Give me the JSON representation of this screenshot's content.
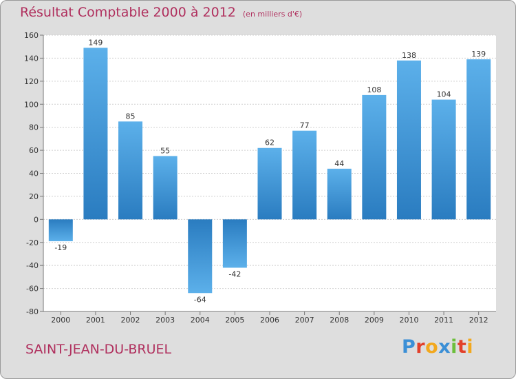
{
  "title": "Résultat Comptable 2000 à 2012",
  "unit_note": "(en milliers d'€)",
  "place_name": "SAINT-JEAN-DU-BRUEL",
  "logo": {
    "text": "Proxiti",
    "colors": [
      "#3b8fd6",
      "#e2402a",
      "#f2a81d",
      "#3b8fd6",
      "#6cbf3b",
      "#e2402a",
      "#f2a81d"
    ]
  },
  "chart_data": {
    "type": "bar",
    "title": "Résultat Comptable 2000 à 2012",
    "categories": [
      "2000",
      "2001",
      "2002",
      "2003",
      "2004",
      "2005",
      "2006",
      "2007",
      "2008",
      "2009",
      "2010",
      "2011",
      "2012"
    ],
    "values": [
      -19,
      149,
      85,
      55,
      -64,
      -42,
      62,
      77,
      44,
      108,
      138,
      104,
      139
    ],
    "data_labels": [
      "-19",
      "149",
      "85",
      "55",
      "-64",
      "-42",
      "62",
      "77",
      "44",
      "108",
      "138",
      "104",
      "139"
    ],
    "ylim": [
      -80,
      160
    ],
    "yticks": [
      -80,
      -60,
      -40,
      -20,
      0,
      20,
      40,
      60,
      80,
      100,
      120,
      140,
      160
    ],
    "ytick_labels": [
      "-80",
      "-60",
      "-40",
      "-20",
      "0",
      "20",
      "40",
      "60",
      "80",
      "100",
      "120",
      "140",
      "160"
    ],
    "grid": true,
    "bar_color_light": "#5cb0ea",
    "bar_color_dark": "#2a7cc0",
    "plot_background": "#ffffff"
  }
}
